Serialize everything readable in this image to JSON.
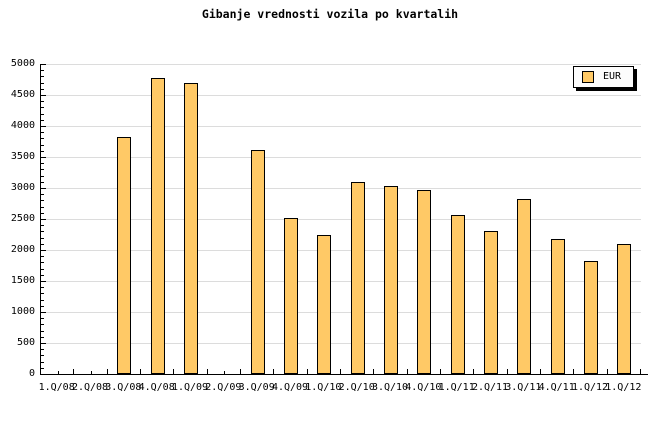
{
  "chart_data": {
    "type": "bar",
    "title": "Gibanje vrednosti vozila po kvartalih",
    "categories": [
      "1.Q/08",
      "2.Q/08",
      "3.Q/08",
      "4.Q/08",
      "1.Q/09",
      "2.Q/09",
      "3.Q/09",
      "4.Q/09",
      "1.Q/10",
      "2.Q/10",
      "3.Q/10",
      "4.Q/10",
      "1.Q/11",
      "2.Q/11",
      "3.Q/11",
      "4.Q/11",
      "1.Q/12",
      "1.Q/12"
    ],
    "series": [
      {
        "name": "EUR",
        "values": [
          null,
          null,
          3820,
          4770,
          4700,
          null,
          3620,
          2510,
          2240,
          3100,
          3040,
          2970,
          2570,
          2300,
          2820,
          2170,
          1820,
          2090
        ]
      }
    ],
    "xlabel": "",
    "ylabel": "",
    "ylim": [
      0,
      5000
    ],
    "ytick_step": 500,
    "ytick_minor_step": 100,
    "ytick_labels": [
      "0",
      "500",
      "1000",
      "1500",
      "2000",
      "2500",
      "3000",
      "3500",
      "4000",
      "4500",
      "5000"
    ],
    "grid": "horizontal-major",
    "legend": {
      "label": "EUR",
      "position": "top-right"
    },
    "colors": {
      "bar_fill": "#FFC966",
      "bar_border": "#000000",
      "grid": "#DCDCDC",
      "axis": "#000000",
      "background": "#FFFFFF",
      "legend_fill": "#FCFCFC",
      "legend_shadow": "#000000",
      "text": "#000000"
    }
  }
}
